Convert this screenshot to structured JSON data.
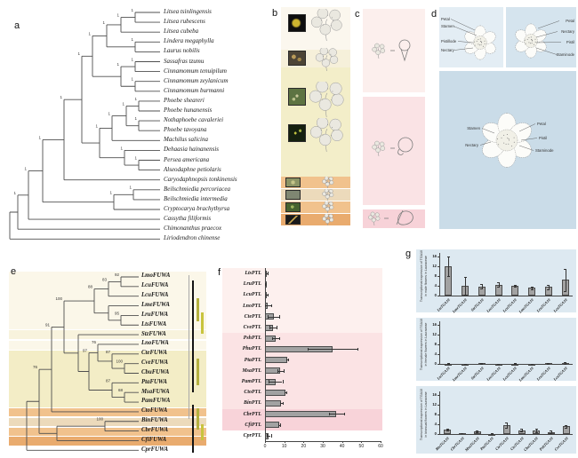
{
  "figure": {
    "panels": {
      "a": "a",
      "b": "b",
      "c": "c",
      "d": "d",
      "e": "e",
      "f": "f",
      "g": "g"
    }
  },
  "panel_a": {
    "letter": "a",
    "support_label": "1",
    "species": [
      "Litsea tsinlingensis",
      "Litsea rubescens",
      "Litsea cubeba",
      "Lindera megaphylla",
      "Laurus nobilis",
      "Sassafras tzumu",
      "Cinnamomum tenuipilum",
      "Cinnamomum zeylanicum",
      "Cinnamomum burmanni",
      "Phoebe sheareri",
      "Phoebe hunanensis",
      "Nothaphoebe cavaleriei",
      "Phoebe tavoyana",
      "Machilus salicina",
      "Dehaasia hainanensis",
      "Persea americana",
      "Alseodaphne petiolaris",
      "Caryodaphnopsis tonkinensis",
      "Beilschmiedia percoriacea",
      "Beilschmiedia intermedia",
      "Cryptocarya brachythyrsa",
      "Cassytha filiformis",
      "Chimonanthus praecox",
      "Liriodendron chinense"
    ]
  },
  "panel_d": {
    "box1_labels": [
      "Petal",
      "Stamen",
      "Pistillode",
      "Nectary"
    ],
    "box2_labels": [
      "Petal",
      "Nectary",
      "Pistil",
      "Staminode"
    ],
    "box3_left": [
      "Stamen",
      "Nectary"
    ],
    "box3_right": [
      "Petal",
      "Pistil",
      "Staminode"
    ]
  },
  "panel_e": {
    "letter": "e",
    "genes": [
      "LmoFUWA",
      "LcuFUWA",
      "LcuFUWA",
      "LmeFUWA",
      "LruFUWA",
      "LtsFUWA",
      "StzFUWA",
      "LnoFUWA",
      "CteFUWA",
      "CveFUWA",
      "CbuFUWA",
      "PtaFUWA",
      "MsaFUWA",
      "PamFUWA",
      "CtoFUWA",
      "BinFUWA",
      "CbrFUWA",
      "CfiFUWA",
      "CprFUWA"
    ],
    "supports": [
      92,
      83,
      95,
      88,
      100,
      76,
      87,
      100,
      87,
      68,
      97,
      91,
      76,
      100
    ]
  },
  "chart_data": [
    {
      "id": "f",
      "type": "bar",
      "orientation": "horizontal",
      "categories": [
        "LtsPTL",
        "LruPTL",
        "LcuPTL",
        "LnoPTL",
        "CtePTL",
        "CvePTL",
        "PshPTL",
        "PhuPTL",
        "PtaPTL",
        "MsaPTL",
        "PamPTL",
        "CtoPTL",
        "BinPTL",
        "CbrPTL",
        "CfiPTL",
        "CprPTL"
      ],
      "values": [
        0.8,
        0.4,
        1.0,
        1.5,
        4.5,
        4.0,
        5.5,
        35,
        11.5,
        8.0,
        5.5,
        10.5,
        8.5,
        37,
        7.5,
        2.0
      ],
      "errors": [
        0.4,
        0.2,
        0.6,
        1.5,
        3.0,
        1.8,
        1.8,
        13,
        0.5,
        1.5,
        3.5,
        0.5,
        0.8,
        4,
        0.5,
        1.0
      ],
      "xlim": [
        0,
        60
      ],
      "xticks": [
        0,
        10,
        20,
        30,
        40,
        50,
        60
      ],
      "title": "",
      "xlabel": "",
      "ylabel": ""
    },
    {
      "id": "g-male",
      "type": "bar",
      "orientation": "vertical",
      "ylabel": "Transcriptional expression of TGA10 in male flowers in Lauraceae",
      "ylabel_lines": [
        "Transcriptional expression of TGA10",
        "in male flowers in Lauraceae"
      ],
      "categories": [
        "LtsTGA10",
        "LmeTGA10",
        "StzTGA10",
        "LnoTGA10",
        "LcuTGA10",
        "LmoTGA10",
        "LruTGA10",
        "LcuTGA10"
      ],
      "values": [
        12,
        4,
        3.8,
        4.5,
        4,
        3.2,
        3.5,
        6.5
      ],
      "errors": [
        4,
        3.5,
        1,
        1,
        0.5,
        0.5,
        1,
        4.5
      ],
      "ylim": [
        0,
        16
      ],
      "yticks": [
        0,
        4,
        8,
        12,
        16
      ]
    },
    {
      "id": "g-female",
      "type": "bar",
      "orientation": "vertical",
      "ylabel": "Transcriptional expression of TGA10 in female flowers in Lauraceae",
      "ylabel_lines": [
        "Transcriptional expression of TGA10",
        "in female flowers in Lauraceae"
      ],
      "categories": [
        "LtsTGA10",
        "LmeTGA10",
        "StzTGA10",
        "LnoTGA10",
        "LcuTGA10",
        "LmoTGA10",
        "LruTGA10",
        "LcuTGA10"
      ],
      "values": [
        0.15,
        0.1,
        0.2,
        0.1,
        0.15,
        0.1,
        0.2,
        0.35
      ],
      "errors": [
        0.1,
        0.05,
        0.1,
        0.05,
        0.1,
        0.05,
        0.1,
        0.2
      ],
      "ylim": [
        0,
        16
      ],
      "yticks": [
        0,
        4,
        8,
        12,
        16
      ]
    },
    {
      "id": "g-bisexual",
      "type": "bar",
      "orientation": "vertical",
      "ylabel": "Transcriptional expression of TGA10 in bisexual flowers in Lauraceae",
      "ylabel_lines": [
        "Transcriptional expression of TGA10",
        "in bisexual flowers in Lauraceae"
      ],
      "categories": [
        "BinTGA10",
        "CbrTGA10",
        "MsaTGA10",
        "PtaTGA10",
        "CteTGA10",
        "CtoTGA10",
        "CbuTGA10",
        "PshTGA10",
        "CveTGA10"
      ],
      "values": [
        1.8,
        0.3,
        1.0,
        0.15,
        3.7,
        1.6,
        1.4,
        0.8,
        3.2
      ],
      "errors": [
        0.4,
        0.1,
        0.3,
        0.1,
        1.1,
        0.5,
        0.8,
        0.6,
        0.5
      ],
      "ylim": [
        0,
        16
      ],
      "yticks": [
        0,
        4,
        8,
        12,
        16
      ]
    }
  ],
  "colors": {
    "band_cream": "#fbf7e9",
    "band_pale": "#f8f3dd",
    "band_yellow": "#f3edc6",
    "band_orange": "#f1c28d",
    "band_tan": "#ecdabb",
    "band_dark_orange": "#e9ab6e",
    "pink_light": "#fdf0ee",
    "pink_mid": "#fbe3e4",
    "pink_dark": "#f8d3d9",
    "blue_light": "#e3edf4",
    "blue_mid": "#d5e4ee",
    "blue_dark": "#cadce8",
    "g_chart_bg": "#dde9f1",
    "bar_fill": "#a2a2a2",
    "bar_stroke": "#4a4a4a",
    "tree_line": "#4f4f4f",
    "annotation_olive": "#b5b13f"
  }
}
